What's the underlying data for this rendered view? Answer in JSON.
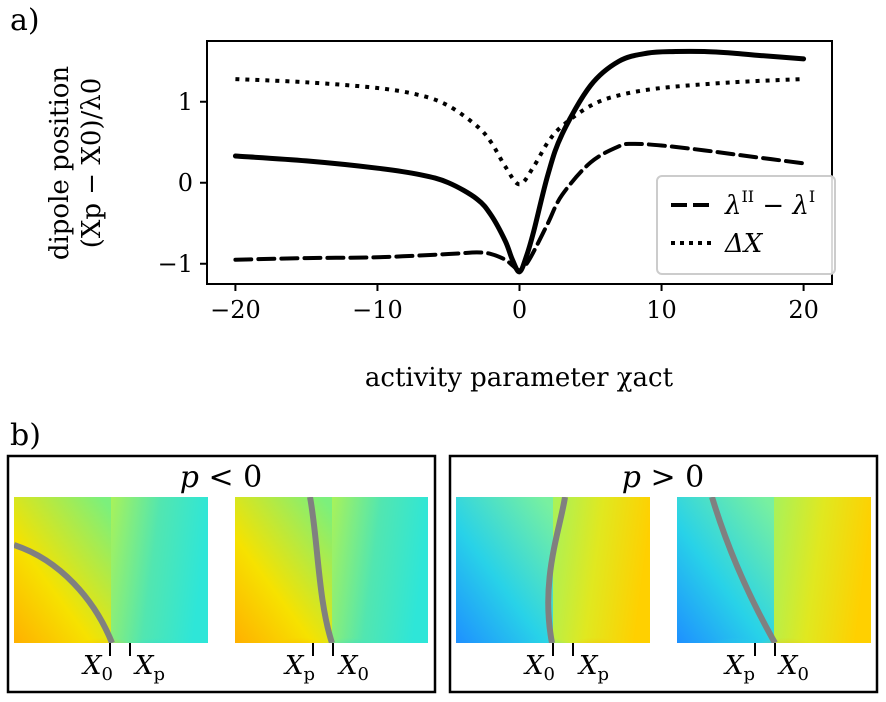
{
  "figure": {
    "panel_a_label": "a)",
    "panel_b_label": "b)"
  },
  "chart_data": {
    "type": "line",
    "title": "",
    "xlabel": "activity parameter χact",
    "ylabel_line1": "dipole position",
    "ylabel_line2": "(Xp − X0)/λ0",
    "xlim": [
      -22,
      22
    ],
    "ylim": [
      -1.25,
      1.75
    ],
    "xticks": [
      -20,
      -10,
      0,
      10,
      20
    ],
    "xtick_labels": [
      "−20",
      "−10",
      "0",
      "10",
      "20"
    ],
    "yticks": [
      -1,
      0,
      1
    ],
    "ytick_labels": [
      "−1",
      "0",
      "1"
    ],
    "legend_position": "lower-right",
    "series": [
      {
        "name": "dipole position",
        "style": "solid",
        "x": [
          -20,
          -15,
          -10,
          -7,
          -5,
          -3,
          -2,
          -1,
          -0.5,
          0,
          0.5,
          1,
          2,
          3,
          5,
          7,
          9,
          11,
          13,
          15,
          17,
          20
        ],
        "y": [
          0.33,
          0.27,
          0.18,
          0.1,
          0.0,
          -0.2,
          -0.4,
          -0.72,
          -0.95,
          -1.1,
          -0.9,
          -0.6,
          0.1,
          0.6,
          1.2,
          1.5,
          1.6,
          1.62,
          1.62,
          1.6,
          1.57,
          1.53
        ]
      },
      {
        "name": "λII − λI",
        "legend_main": "λ",
        "legend_sup1": "II",
        "legend_minus": " − λ",
        "legend_sup2": "I",
        "style": "dashed",
        "x": [
          -20,
          -15,
          -10,
          -5,
          -3,
          -2,
          -1,
          -0.5,
          0,
          0.5,
          1,
          2,
          3,
          5,
          7,
          8,
          10,
          13,
          16,
          20
        ],
        "y": [
          -0.95,
          -0.93,
          -0.92,
          -0.88,
          -0.86,
          -0.88,
          -0.95,
          -1.02,
          -1.08,
          -1.0,
          -0.85,
          -0.5,
          -0.15,
          0.25,
          0.45,
          0.48,
          0.46,
          0.4,
          0.33,
          0.24
        ]
      },
      {
        "name": "ΔX",
        "legend_label": "ΔX",
        "style": "dotted",
        "x": [
          -20,
          -15,
          -10,
          -7,
          -5,
          -3,
          -2,
          -1,
          0,
          1,
          2,
          3,
          5,
          7,
          10,
          15,
          20
        ],
        "y": [
          1.28,
          1.24,
          1.17,
          1.08,
          0.95,
          0.7,
          0.5,
          0.2,
          -0.02,
          0.2,
          0.5,
          0.7,
          0.95,
          1.08,
          1.17,
          1.24,
          1.28
        ]
      }
    ]
  },
  "panel_b": {
    "groups": [
      {
        "title": "p < 0",
        "title_p": "p",
        "title_rel": " < 0",
        "maps": [
          {
            "left_marker": "X",
            "left_sub": "0",
            "right_marker": "X",
            "right_sub": "p"
          },
          {
            "left_marker": "X",
            "left_sub": "p",
            "right_marker": "X",
            "right_sub": "0"
          }
        ]
      },
      {
        "title": "p > 0",
        "title_p": "p",
        "title_rel": " > 0",
        "maps": [
          {
            "left_marker": "X",
            "left_sub": "0",
            "right_marker": "X",
            "right_sub": "p"
          },
          {
            "left_marker": "X",
            "left_sub": "p",
            "right_marker": "X",
            "right_sub": "0"
          }
        ]
      }
    ]
  },
  "colors": {
    "line": "#000000",
    "interface": "#808080",
    "legend_border": "#cccccc"
  }
}
